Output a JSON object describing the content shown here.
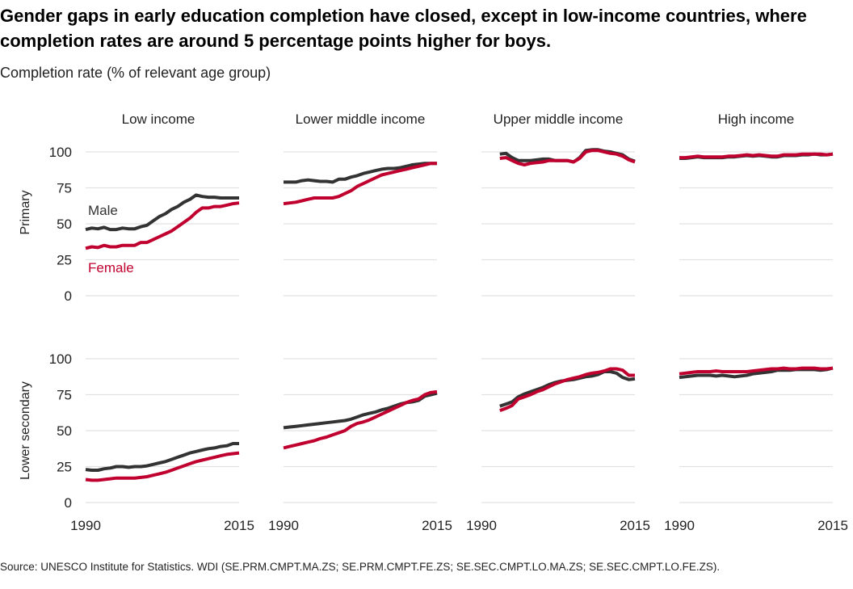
{
  "title": "Gender gaps in early education completion have closed, except in low-income countries, where completion rates are around 5 percentage points higher for boys.",
  "subtitle": "Completion rate (% of relevant age group)",
  "source": "Source: UNESCO Institute for Statistics. WDI (SE.PRM.CMPT.MA.ZS; SE.PRM.CMPT.FE.ZS; SE.SEC.CMPT.LO.MA.ZS; SE.SEC.CMPT.LO.FE.ZS).",
  "colors": {
    "male": "#333333",
    "female": "#c0002e",
    "grid": "#e2e2e2",
    "text": "#222222"
  },
  "chart_data": {
    "type": "line",
    "columns": [
      "Low income",
      "Lower middle income",
      "Upper middle income",
      "High income"
    ],
    "rows": [
      "Primary",
      "Lower secondary"
    ],
    "x_ticks": [
      "1990",
      "2015"
    ],
    "xlim": [
      1990,
      2015
    ],
    "y_ticks": [
      0,
      25,
      50,
      75,
      100
    ],
    "ylim": [
      0,
      100
    ],
    "grid": true,
    "series_labels": {
      "male": "Male",
      "female": "Female"
    },
    "panels": [
      {
        "row": "Primary",
        "column": "Low income",
        "x": [
          1990,
          1991,
          1992,
          1993,
          1994,
          1995,
          1996,
          1997,
          1998,
          1999,
          2000,
          2001,
          2002,
          2003,
          2004,
          2005,
          2006,
          2007,
          2008,
          2009,
          2010,
          2011,
          2012,
          2013,
          2014,
          2015
        ],
        "male": [
          46,
          47,
          46.5,
          47.5,
          46,
          46,
          47,
          46.5,
          46.5,
          48,
          49,
          52,
          55,
          57,
          60,
          62,
          65,
          67,
          70,
          69,
          68.5,
          68.5,
          68,
          68,
          68,
          68
        ],
        "female": [
          33,
          34,
          33.5,
          35,
          34,
          34,
          35,
          35,
          35,
          37,
          37,
          39,
          41,
          43,
          45,
          48,
          51,
          54,
          58,
          61,
          61,
          62,
          62,
          63,
          64,
          64.5
        ]
      },
      {
        "row": "Primary",
        "column": "Lower middle income",
        "x": [
          1990,
          1991,
          1992,
          1993,
          1994,
          1995,
          1996,
          1997,
          1998,
          1999,
          2000,
          2001,
          2002,
          2003,
          2004,
          2005,
          2006,
          2007,
          2008,
          2009,
          2010,
          2011,
          2012,
          2013,
          2014,
          2015
        ],
        "male": [
          79,
          79,
          79,
          80,
          80.5,
          80,
          79.5,
          79.5,
          79,
          81,
          81,
          82.5,
          83.5,
          85,
          86,
          87,
          88,
          88.5,
          88.5,
          89,
          90,
          91,
          91.5,
          92,
          92,
          92
        ],
        "female": [
          64,
          64.5,
          65,
          66,
          67,
          68,
          68,
          68,
          68,
          69,
          71,
          73,
          76,
          78,
          80,
          82,
          84,
          85,
          86,
          87,
          88,
          89,
          90,
          91,
          92,
          92
        ]
      },
      {
        "row": "Primary",
        "column": "Upper middle income",
        "x": [
          1993,
          1994,
          1995,
          1996,
          1997,
          1998,
          1999,
          2000,
          2001,
          2002,
          2003,
          2004,
          2005,
          2006,
          2007,
          2008,
          2009,
          2010,
          2011,
          2012,
          2013,
          2014,
          2015
        ],
        "male": [
          98.5,
          99,
          96,
          94,
          94,
          94,
          94.5,
          95,
          95,
          94,
          94,
          94,
          93,
          96,
          101,
          101.5,
          101.5,
          100.5,
          100,
          99,
          98,
          95,
          93.5
        ],
        "female": [
          95.5,
          96,
          94,
          92,
          91,
          92,
          92.5,
          93,
          94,
          94,
          94,
          94,
          93,
          95.5,
          100,
          101,
          101,
          100,
          99,
          98.5,
          97,
          94.5,
          93
        ]
      },
      {
        "row": "Primary",
        "column": "High income",
        "x": [
          1990,
          1991,
          1992,
          1993,
          1994,
          1995,
          1996,
          1997,
          1998,
          1999,
          2000,
          2001,
          2002,
          2003,
          2004,
          2005,
          2006,
          2007,
          2008,
          2009,
          2010,
          2011,
          2012,
          2013,
          2014,
          2015
        ],
        "male": [
          95.5,
          95.5,
          96,
          96.5,
          96,
          96,
          96,
          96,
          96.5,
          96.5,
          97,
          97.5,
          97,
          97.5,
          97,
          96.5,
          96.5,
          97.5,
          97.5,
          97.5,
          98,
          98,
          98.5,
          98,
          98,
          98.5
        ],
        "female": [
          96,
          96,
          96.5,
          97,
          96.5,
          96.5,
          96.5,
          96.5,
          97,
          97,
          97.5,
          98,
          97.5,
          98,
          97.5,
          97,
          97,
          98,
          98,
          98,
          98.5,
          98.5,
          98.5,
          98.5,
          98,
          98.5
        ]
      },
      {
        "row": "Lower secondary",
        "column": "Low income",
        "x": [
          1990,
          1991,
          1992,
          1993,
          1994,
          1995,
          1996,
          1997,
          1998,
          1999,
          2000,
          2001,
          2002,
          2003,
          2004,
          2005,
          2006,
          2007,
          2008,
          2009,
          2010,
          2011,
          2012,
          2013,
          2014,
          2015
        ],
        "male": [
          23,
          22.5,
          22.5,
          23.5,
          24,
          25,
          25,
          24.5,
          25,
          25,
          25.5,
          26.5,
          27.5,
          28.5,
          30,
          31.5,
          33,
          34.5,
          35.5,
          36.5,
          37.5,
          38,
          39,
          39.5,
          41,
          41
        ],
        "female": [
          16,
          15.5,
          15.5,
          16,
          16.5,
          17,
          17,
          17,
          17,
          17.5,
          18,
          19,
          20,
          21,
          22.5,
          24,
          25.5,
          27,
          28.5,
          29.5,
          30.5,
          31.5,
          32.5,
          33.5,
          34,
          34.5
        ]
      },
      {
        "row": "Lower secondary",
        "column": "Lower middle income",
        "x": [
          1990,
          1991,
          1992,
          1993,
          1994,
          1995,
          1996,
          1997,
          1998,
          1999,
          2000,
          2001,
          2002,
          2003,
          2004,
          2005,
          2006,
          2007,
          2008,
          2009,
          2010,
          2011,
          2012,
          2013,
          2014,
          2015
        ],
        "male": [
          52,
          52.5,
          53,
          53.5,
          54,
          54.5,
          55,
          55.5,
          56,
          56.5,
          57,
          58,
          59.5,
          61,
          62,
          63,
          64.5,
          65.5,
          67,
          68.5,
          69.5,
          70,
          71,
          74,
          75,
          76
        ],
        "female": [
          38,
          39,
          40,
          41,
          42,
          43,
          44.5,
          45.5,
          47,
          48.5,
          50,
          53,
          55,
          56,
          57.5,
          59.5,
          61.5,
          63.5,
          65.5,
          67.5,
          69.5,
          71,
          72,
          75,
          76.5,
          77
        ]
      },
      {
        "row": "Lower secondary",
        "column": "Upper middle income",
        "x": [
          1993,
          1994,
          1995,
          1996,
          1997,
          1998,
          1999,
          2000,
          2001,
          2002,
          2003,
          2004,
          2005,
          2006,
          2007,
          2008,
          2009,
          2010,
          2011,
          2012,
          2013,
          2014,
          2015
        ],
        "male": [
          67,
          68.5,
          70,
          73.5,
          75.5,
          77,
          78.5,
          80,
          82,
          83.5,
          84.5,
          85,
          85.5,
          86.5,
          87.5,
          88,
          89,
          91,
          91,
          90,
          87,
          85.5,
          86
        ],
        "female": [
          64,
          65.5,
          67.5,
          72,
          73.5,
          75,
          77,
          78.5,
          80.5,
          82.5,
          84,
          85.5,
          86.5,
          87.5,
          89,
          90,
          90.5,
          91.5,
          93,
          93,
          92,
          88.5,
          88.5
        ]
      },
      {
        "row": "Lower secondary",
        "column": "High income",
        "x": [
          1990,
          1991,
          1992,
          1993,
          1994,
          1995,
          1996,
          1997,
          1998,
          1999,
          2000,
          2001,
          2002,
          2003,
          2004,
          2005,
          2006,
          2007,
          2008,
          2009,
          2010,
          2011,
          2012,
          2013,
          2014,
          2015
        ],
        "male": [
          87,
          87.5,
          88,
          88.5,
          88.5,
          88.5,
          88,
          88.5,
          88,
          87.5,
          88,
          88.5,
          89.5,
          90,
          90.5,
          91,
          92,
          92,
          92,
          92.5,
          92.5,
          92.5,
          92.5,
          92,
          92.5,
          93.5
        ],
        "female": [
          89.5,
          90,
          90.5,
          91,
          91,
          91,
          91.5,
          91,
          91,
          91,
          91,
          91,
          91.5,
          92,
          92.5,
          93,
          93,
          93.5,
          93,
          93,
          93.5,
          93.5,
          93.5,
          93,
          93,
          93.5
        ]
      }
    ]
  }
}
